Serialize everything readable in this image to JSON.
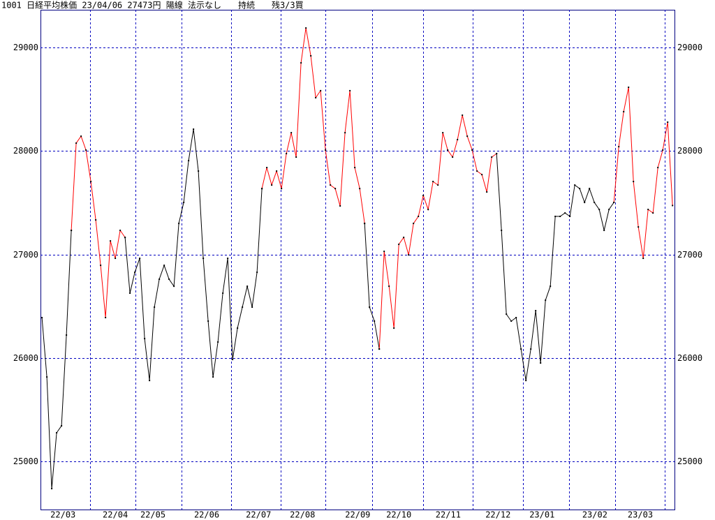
{
  "chart_data": {
    "type": "line",
    "title": "1001 日経平均株価 23/04/06 27473円 陽線 法示なし　　持続　　残3/3買",
    "series": [
      {
        "color": "#000000",
        "values": [
          26390,
          25816,
          24737,
          25277,
          25344,
          26221,
          27233,
          null,
          null,
          null,
          null,
          null,
          null,
          null,
          null,
          null,
          null,
          27165,
          26626,
          26828,
          26963,
          26187,
          25782,
          26491,
          26761,
          26895,
          26761,
          26693,
          27300,
          27503,
          27907,
          28211,
          27806,
          26963,
          26356,
          25816,
          26154,
          26626,
          26963,
          25985,
          26288,
          26491,
          26693,
          26491,
          26828,
          27637,
          null,
          null,
          null,
          null,
          null,
          null,
          null,
          null,
          null,
          null,
          null,
          null,
          null,
          null,
          null,
          null,
          null,
          null,
          null,
          null,
          27300,
          26491,
          26356,
          26086,
          null,
          null,
          null,
          null,
          null,
          null,
          null,
          null,
          null,
          null,
          null,
          null,
          null,
          null,
          null,
          null,
          null,
          null,
          null,
          null,
          null,
          null,
          null,
          27975,
          27233,
          26423,
          26356,
          26390,
          26086,
          25782,
          26086,
          26457,
          25951,
          26558,
          26693,
          27368,
          27368,
          27401,
          27368,
          27671,
          27637,
          27503,
          27637,
          27503,
          27435,
          27233,
          27435,
          27503,
          null,
          null,
          null,
          null,
          null,
          null,
          null,
          null,
          null,
          null,
          null,
          null
        ]
      },
      {
        "color": "#ff0000",
        "values": [
          null,
          null,
          null,
          null,
          null,
          null,
          27233,
          28076,
          28143,
          28009,
          27705,
          27334,
          26895,
          26390,
          27131,
          26963,
          27233,
          27165,
          null,
          null,
          null,
          null,
          null,
          null,
          null,
          null,
          null,
          null,
          null,
          null,
          null,
          null,
          null,
          null,
          null,
          null,
          null,
          null,
          null,
          null,
          null,
          null,
          null,
          null,
          null,
          27637,
          27840,
          27671,
          27806,
          27637,
          27975,
          28177,
          27941,
          28852,
          29189,
          28920,
          28515,
          28583,
          28009,
          27671,
          27637,
          27469,
          28177,
          28583,
          27840,
          27637,
          27300,
          null,
          null,
          26086,
          27030,
          26693,
          26288,
          27098,
          27165,
          26996,
          27300,
          27368,
          27570,
          27435,
          27705,
          27671,
          28177,
          28009,
          27941,
          28110,
          28346,
          28143,
          28009,
          27806,
          27772,
          27604,
          27941,
          27975,
          null,
          null,
          null,
          null,
          null,
          null,
          null,
          null,
          null,
          null,
          null,
          null,
          null,
          null,
          null,
          null,
          null,
          null,
          null,
          null,
          null,
          null,
          null,
          27503,
          28042,
          28380,
          28616,
          27705,
          27266,
          26963,
          27435,
          27401,
          27840,
          28009,
          28279,
          27473
        ]
      }
    ],
    "xlim": [
      -0.3,
      129.4
    ],
    "xgrid": [
      9.86,
      19.14,
      28.57,
      38.71,
      48.86,
      58,
      67.57,
      78,
      88.14,
      98.43,
      107.86,
      117.29,
      127.43
    ],
    "xticks": [
      {
        "value": 4.3,
        "label": "22/03"
      },
      {
        "value": 15,
        "label": "22/04"
      },
      {
        "value": 22.7,
        "label": "22/05"
      },
      {
        "value": 33.7,
        "label": "22/06"
      },
      {
        "value": 44.3,
        "label": "22/07"
      },
      {
        "value": 53.3,
        "label": "22/08"
      },
      {
        "value": 64.6,
        "label": "22/09"
      },
      {
        "value": 73,
        "label": "22/10"
      },
      {
        "value": 83.1,
        "label": "22/11"
      },
      {
        "value": 93.3,
        "label": "22/12"
      },
      {
        "value": 102.3,
        "label": "23/01"
      },
      {
        "value": 113.1,
        "label": "23/02"
      },
      {
        "value": 122.4,
        "label": "23/03"
      }
    ],
    "ylim": [
      24535,
      29365
    ],
    "yticks": [
      25000,
      26000,
      27000,
      28000,
      29000
    ],
    "grid": true
  }
}
